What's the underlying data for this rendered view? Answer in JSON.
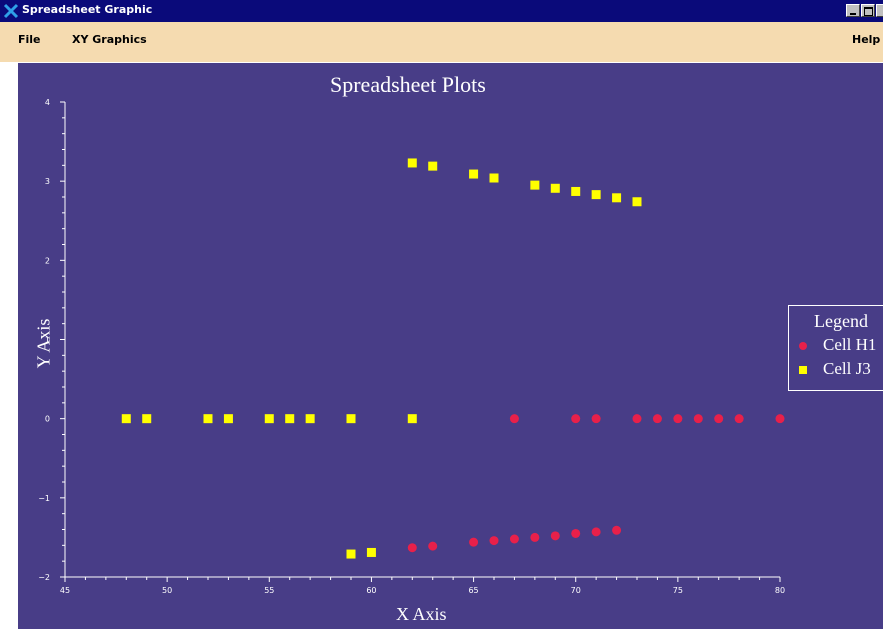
{
  "window": {
    "title": "Spreadsheet Graphic",
    "icon": "x-logo-icon"
  },
  "menu": {
    "file": "File",
    "xy_graphics": "XY Graphics",
    "help": "Help"
  },
  "colors": {
    "plot_background": "#483d87",
    "series_h": "#e8204a",
    "series_j": "#ffff00",
    "menubar": "#f5dbb0",
    "titlebar": "#0a0a7a"
  },
  "chart_data": {
    "type": "scatter",
    "title": "Spreadsheet Plots",
    "xlabel": "X Axis",
    "ylabel": "Y Axis",
    "xlim": [
      45,
      80
    ],
    "ylim": [
      -2,
      4
    ],
    "xticks": [
      45,
      50,
      55,
      60,
      65,
      70,
      75,
      80
    ],
    "yticks": [
      -2,
      -1,
      0,
      1,
      2,
      3,
      4
    ],
    "grid": false,
    "legend_title": "Legend",
    "legend_position": "right",
    "series": [
      {
        "name": "Cell H1",
        "marker": "circle",
        "color": "#e8204a",
        "points": [
          [
            62,
            -1.63
          ],
          [
            63,
            -1.61
          ],
          [
            65,
            -1.56
          ],
          [
            66,
            -1.54
          ],
          [
            67,
            -1.52
          ],
          [
            68,
            -1.5
          ],
          [
            69,
            -1.48
          ],
          [
            70,
            -1.45
          ],
          [
            71,
            -1.43
          ],
          [
            72,
            -1.41
          ],
          [
            67,
            0
          ],
          [
            70,
            0
          ],
          [
            71,
            0
          ],
          [
            73,
            0
          ],
          [
            74,
            0
          ],
          [
            75,
            0
          ],
          [
            76,
            0
          ],
          [
            77,
            0
          ],
          [
            78,
            0
          ],
          [
            80,
            0
          ]
        ]
      },
      {
        "name": "Cell J3",
        "marker": "square",
        "color": "#ffff00",
        "points": [
          [
            48,
            0
          ],
          [
            49,
            0
          ],
          [
            52,
            0
          ],
          [
            53,
            0
          ],
          [
            55,
            0
          ],
          [
            56,
            0
          ],
          [
            57,
            0
          ],
          [
            59,
            0
          ],
          [
            62,
            0
          ],
          [
            59,
            -1.71
          ],
          [
            60,
            -1.69
          ],
          [
            62,
            3.23
          ],
          [
            63,
            3.19
          ],
          [
            65,
            3.09
          ],
          [
            66,
            3.04
          ],
          [
            68,
            2.95
          ],
          [
            69,
            2.91
          ],
          [
            70,
            2.87
          ],
          [
            71,
            2.83
          ],
          [
            72,
            2.79
          ],
          [
            73,
            2.74
          ]
        ]
      }
    ]
  }
}
